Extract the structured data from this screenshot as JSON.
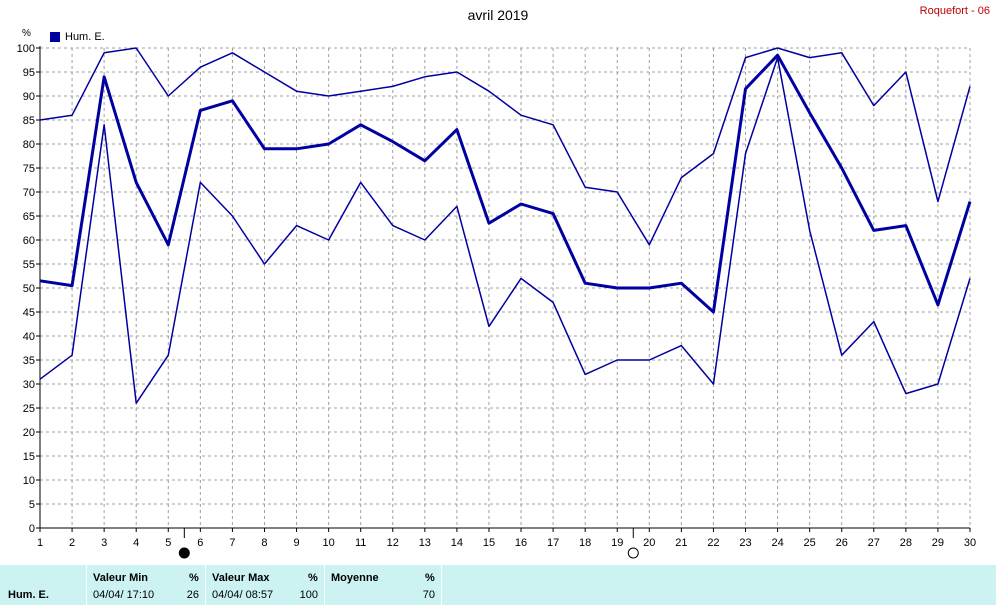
{
  "title": "avril 2019",
  "station": "Roquefort - 06",
  "unit_label": "%",
  "legend": {
    "label": "Hum. E.",
    "color": "#0000a0"
  },
  "chart_data": {
    "type": "line",
    "x": [
      1,
      2,
      3,
      4,
      5,
      6,
      7,
      8,
      9,
      10,
      11,
      12,
      13,
      14,
      15,
      16,
      17,
      18,
      19,
      20,
      21,
      22,
      23,
      24,
      25,
      26,
      27,
      28,
      29,
      30
    ],
    "series": [
      {
        "name": "Hum. E.",
        "role": "max",
        "color": "#0000a0",
        "values": [
          85,
          86,
          99,
          100,
          90,
          96,
          99,
          95,
          91,
          90,
          91,
          92,
          94,
          95,
          91,
          86,
          84,
          71,
          70,
          59,
          73,
          78,
          98,
          100,
          98,
          99,
          88,
          95,
          68,
          92
        ]
      },
      {
        "name": "Hum. E.",
        "role": "avg",
        "color": "#0000a0",
        "values": [
          51.5,
          50.5,
          94,
          72,
          59,
          87,
          89,
          79,
          79,
          80,
          84,
          80.5,
          76.5,
          83,
          63.5,
          67.5,
          65.5,
          51,
          50,
          50,
          51,
          45,
          91.5,
          98.5,
          86.5,
          75,
          62,
          63,
          46.5,
          68
        ]
      },
      {
        "name": "Hum. E.",
        "role": "min",
        "color": "#0000a0",
        "values": [
          31,
          36,
          84,
          26,
          36,
          72,
          65,
          55,
          63,
          60,
          72,
          63,
          60,
          67,
          42,
          52,
          47,
          32,
          35,
          35,
          38,
          30,
          78,
          98,
          62,
          36,
          43,
          28,
          30,
          52
        ]
      }
    ],
    "ylim": [
      0,
      100
    ],
    "yticks": [
      0,
      5,
      10,
      15,
      20,
      25,
      30,
      35,
      40,
      45,
      50,
      55,
      60,
      65,
      70,
      75,
      80,
      85,
      90,
      95,
      100
    ],
    "xlim": [
      1,
      30
    ],
    "grid": true,
    "legend_position": "top-left",
    "moon_phases": [
      {
        "x": 5.5,
        "phase": "new"
      },
      {
        "x": 19.5,
        "phase": "full"
      }
    ]
  },
  "footer": {
    "row_label": "Hum. E.",
    "min": {
      "header": "Valeur Min",
      "unit": "%",
      "time": "04/04/  17:10",
      "value": "26"
    },
    "max": {
      "header": "Valeur Max",
      "unit": "%",
      "time": "04/04/  08:57",
      "value": "100"
    },
    "avg": {
      "header": "Moyenne",
      "unit": "%",
      "value": "70"
    }
  }
}
